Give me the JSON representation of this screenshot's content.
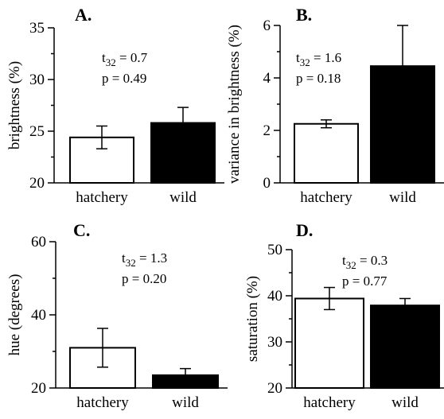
{
  "chart_data": [
    {
      "type": "bar",
      "panel": "A.",
      "categories": [
        "hatchery",
        "wild"
      ],
      "values": [
        24.4,
        25.8
      ],
      "errors": [
        1.1,
        1.5
      ],
      "ylabel": "brightness (%)",
      "ylim": [
        20,
        35
      ],
      "yticks": [
        20,
        25,
        30,
        35
      ],
      "colors": [
        "#ffffff",
        "#000000"
      ],
      "stat_t": "t32 = 0.7",
      "stat_p": "p = 0.49"
    },
    {
      "type": "bar",
      "panel": "B.",
      "categories": [
        "hatchery",
        "wild"
      ],
      "values": [
        2.25,
        4.45
      ],
      "errors": [
        0.15,
        1.55
      ],
      "ylabel": "variance in brightness (%)",
      "ylim": [
        0,
        6
      ],
      "yticks": [
        0,
        2,
        4,
        6
      ],
      "colors": [
        "#ffffff",
        "#000000"
      ],
      "stat_t": "t32 = 1.6",
      "stat_p": "p = 0.18"
    },
    {
      "type": "bar",
      "panel": "C.",
      "categories": [
        "hatchery",
        "wild"
      ],
      "values": [
        31,
        23.5
      ],
      "errors": [
        5.3,
        1.8
      ],
      "ylabel": "hue (degrees)",
      "ylim": [
        20,
        60
      ],
      "yticks": [
        20,
        40,
        60
      ],
      "colors": [
        "#ffffff",
        "#000000"
      ],
      "stat_t": "t32 = 1.3",
      "stat_p": "p = 0.20"
    },
    {
      "type": "bar",
      "panel": "D.",
      "categories": [
        "hatchery",
        "wild"
      ],
      "values": [
        39.4,
        37.9
      ],
      "errors": [
        2.4,
        1.5
      ],
      "ylabel": "saturation (%)",
      "ylim": [
        20,
        50
      ],
      "yticks": [
        20,
        30,
        40,
        50
      ],
      "colors": [
        "#ffffff",
        "#000000"
      ],
      "stat_t": "t32 = 0.3",
      "stat_p": "p = 0.77"
    }
  ]
}
